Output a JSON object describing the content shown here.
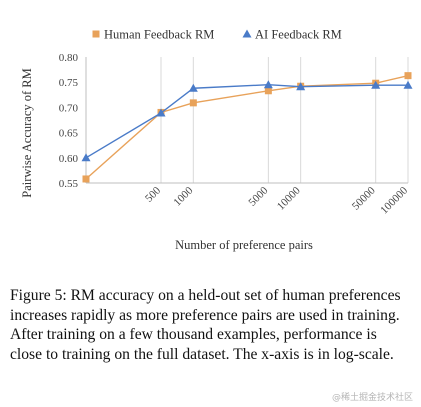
{
  "chart_data": {
    "type": "line",
    "x_scale": "log",
    "xlabel": "Number of preference pairs",
    "ylabel": "Pairwise Accuracy of RM",
    "ylim": [
      0.55,
      0.8
    ],
    "y_ticks": [
      "0.55",
      "0.60",
      "0.65",
      "0.70",
      "0.75",
      "0.80"
    ],
    "x_tick_values": [
      500,
      1000,
      5000,
      10000,
      50000,
      100000
    ],
    "x_tick_labels": [
      "500",
      "1000",
      "5000",
      "10000",
      "50000",
      "100000"
    ],
    "grid": "vertical",
    "legend_position": "top",
    "series": [
      {
        "name": "Human Feedback RM",
        "color": "#E8A25A",
        "marker": "square",
        "x": [
          100,
          500,
          1000,
          5000,
          10000,
          50000,
          100000
        ],
        "y": [
          0.558,
          0.69,
          0.709,
          0.733,
          0.742,
          0.748,
          0.763
        ]
      },
      {
        "name": "AI Feedback RM",
        "color": "#4A7BC8",
        "marker": "triangle",
        "x": [
          100,
          500,
          1000,
          5000,
          10000,
          50000,
          100000
        ],
        "y": [
          0.6,
          0.689,
          0.738,
          0.745,
          0.741,
          0.744,
          0.744
        ]
      }
    ]
  },
  "caption": "Figure 5: RM accuracy on a held-out set of human preferences increases rapidly as more preference pairs are used in training. After training on a few thousand examples, performance is close to training on the full dataset. The x-axis is in log-scale.",
  "watermark": "@稀土掘金技术社区"
}
